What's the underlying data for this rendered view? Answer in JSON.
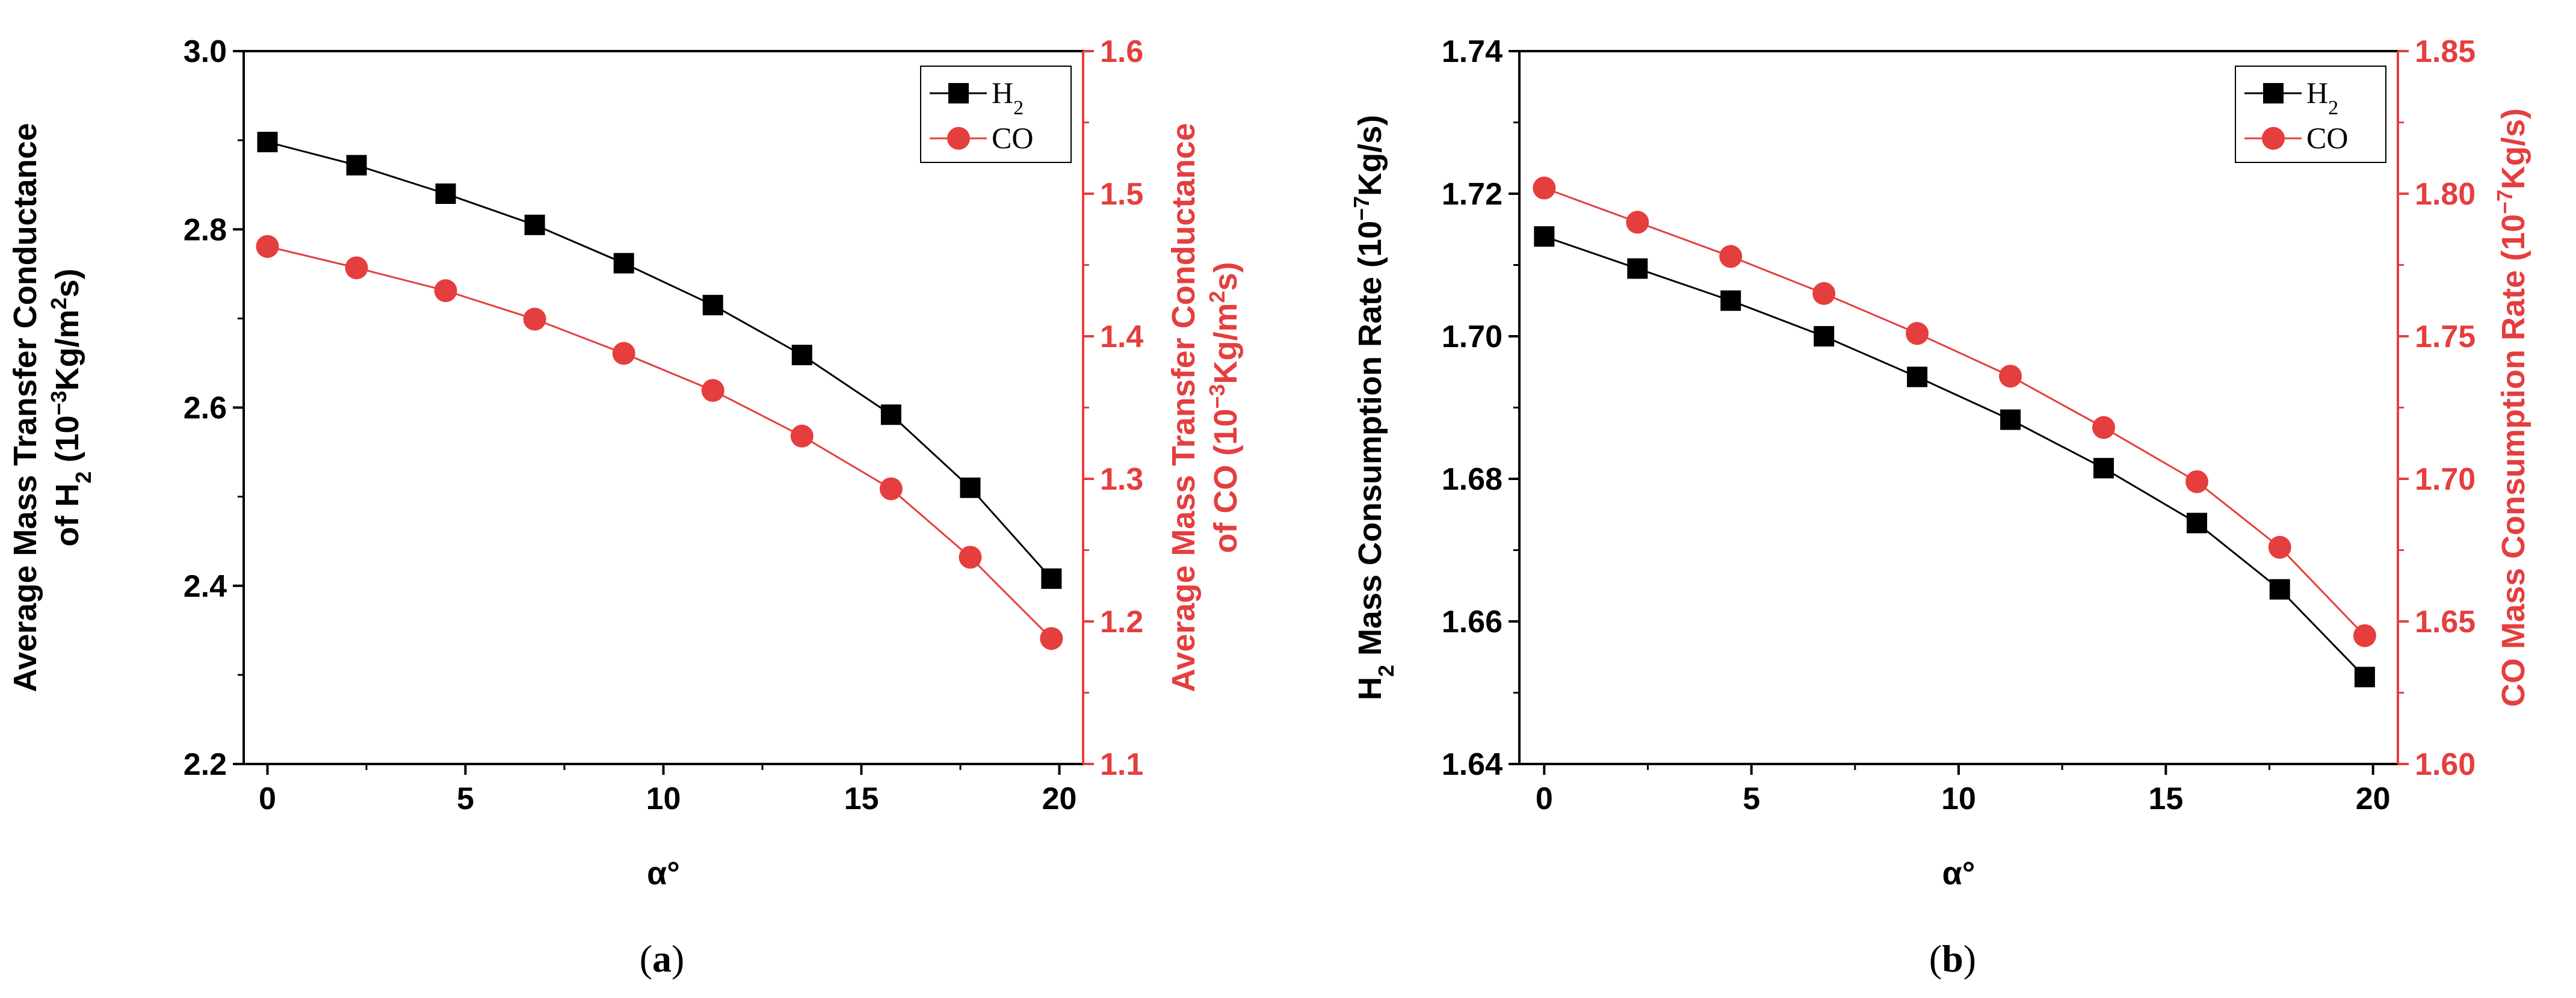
{
  "chart_data": [
    {
      "type": "line",
      "panel_label": "a",
      "xlabel": "α°",
      "x": [
        0,
        2.25,
        4.5,
        6.75,
        9,
        11.25,
        13.5,
        15.75,
        17.75,
        19.8
      ],
      "xlim": [
        -0.6,
        20.6
      ],
      "xticks": [
        0,
        5,
        10,
        15,
        20
      ],
      "ylabel_left": {
        "line1": "Average Mass Transfer Conductance",
        "line2_prefix": "of H",
        "line2_sub": "2",
        "line2_unit_a": " (10",
        "line2_unit_sup": "−3",
        "line2_unit_b": "Kg/m",
        "line2_unit_sup2": "2",
        "line2_unit_c": "s)"
      },
      "ylabel_right": {
        "line1": "Average Mass Transfer Conductance",
        "line2_prefix": "of CO",
        "line2_unit_a": " (10",
        "line2_unit_sup": "−3",
        "line2_unit_b": "Kg/m",
        "line2_unit_sup2": "2",
        "line2_unit_c": "s)"
      },
      "ylim_left": [
        2.2,
        3.0
      ],
      "yticks_left": [
        "2.2",
        "2.4",
        "2.6",
        "2.8",
        "3.0"
      ],
      "ylim_right": [
        1.1,
        1.6
      ],
      "yticks_right": [
        "1.1",
        "1.2",
        "1.3",
        "1.4",
        "1.5",
        "1.6"
      ],
      "series": [
        {
          "name": "H",
          "name_sub": "2",
          "axis": "left",
          "marker": "square",
          "color": "#000000",
          "values": [
            2.898,
            2.872,
            2.84,
            2.805,
            2.762,
            2.715,
            2.659,
            2.592,
            2.51,
            2.408
          ]
        },
        {
          "name": "CO",
          "axis": "right",
          "marker": "circle",
          "color": "#e53e3e",
          "values": [
            1.463,
            1.448,
            1.432,
            1.412,
            1.388,
            1.362,
            1.33,
            1.293,
            1.245,
            1.188
          ]
        }
      ],
      "legend_position": "top-right"
    },
    {
      "type": "line",
      "panel_label": "b",
      "xlabel": "α°",
      "x": [
        0,
        2.25,
        4.5,
        6.75,
        9,
        11.25,
        13.5,
        15.75,
        17.75,
        19.8
      ],
      "xlim": [
        -0.6,
        20.6
      ],
      "xticks": [
        0,
        5,
        10,
        15,
        20
      ],
      "ylabel_left": {
        "line1_prefix": "H",
        "line1_sub": "2",
        "line1_text": " Mass Consumption Rate (10",
        "line1_sup": "−7",
        "line1_end": "Kg/s)"
      },
      "ylabel_right": {
        "line1_text": "CO Mass Consumption Rate (10",
        "line1_sup": "−7",
        "line1_end": "Kg/s)"
      },
      "ylim_left": [
        1.64,
        1.74
      ],
      "yticks_left": [
        "1.64",
        "1.66",
        "1.68",
        "1.70",
        "1.72",
        "1.74"
      ],
      "ylim_right": [
        1.6,
        1.85
      ],
      "yticks_right": [
        "1.60",
        "1.65",
        "1.70",
        "1.75",
        "1.80",
        "1.85"
      ],
      "series": [
        {
          "name": "H",
          "name_sub": "2",
          "axis": "left",
          "marker": "square",
          "color": "#000000",
          "values": [
            1.714,
            1.7095,
            1.705,
            1.7,
            1.6943,
            1.6883,
            1.6815,
            1.6738,
            1.6645,
            1.6522
          ]
        },
        {
          "name": "CO",
          "axis": "right",
          "marker": "circle",
          "color": "#e53e3e",
          "values": [
            1.802,
            1.79,
            1.778,
            1.765,
            1.751,
            1.736,
            1.718,
            1.699,
            1.676,
            1.645
          ]
        }
      ],
      "legend_position": "top-right"
    }
  ]
}
